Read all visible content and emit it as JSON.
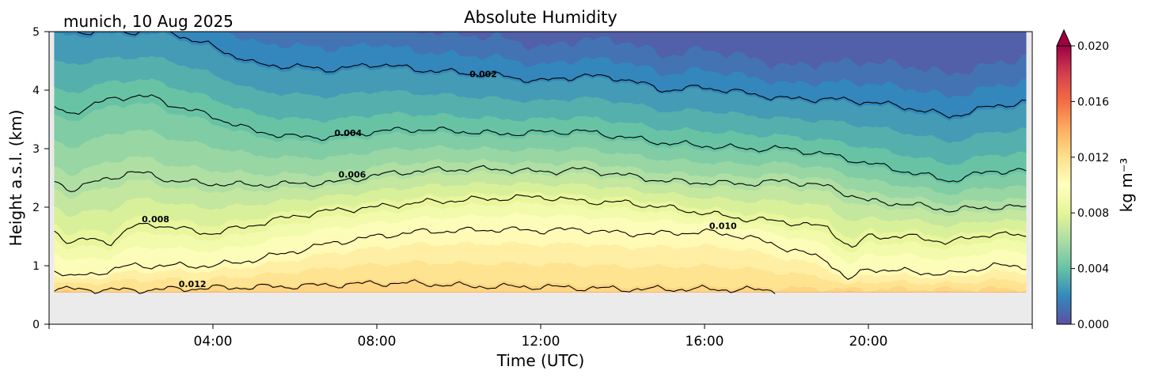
{
  "chart_data": {
    "type": "contourf",
    "title": "Absolute Humidity",
    "subtitle": "munich, 10 Aug 2025",
    "xlabel": "Time (UTC)",
    "ylabel": "Height a.s.l. (km)",
    "xlim": [
      0,
      24
    ],
    "ylim": [
      0,
      5
    ],
    "xticks": [
      {
        "value": 4,
        "label": "04:00"
      },
      {
        "value": 8,
        "label": "08:00"
      },
      {
        "value": 12,
        "label": "12:00"
      },
      {
        "value": 16,
        "label": "16:00"
      },
      {
        "value": 20,
        "label": "20:00"
      }
    ],
    "yticks": [
      {
        "value": 0,
        "label": "0"
      },
      {
        "value": 1,
        "label": "1"
      },
      {
        "value": 2,
        "label": "2"
      },
      {
        "value": 3,
        "label": "3"
      },
      {
        "value": 4,
        "label": "4"
      },
      {
        "value": 5,
        "label": "5"
      }
    ],
    "data_bottom_km": 0.55,
    "data_time_range": [
      0.13,
      23.85
    ],
    "colorbar": {
      "label": "kg m⁻³",
      "range": [
        0.0,
        0.02
      ],
      "extend": "max",
      "colormap": "Spectral_r",
      "ticks": [
        {
          "value": 0.0,
          "label": "0.000"
        },
        {
          "value": 0.004,
          "label": "0.004"
        },
        {
          "value": 0.008,
          "label": "0.008"
        },
        {
          "value": 0.012,
          "label": "0.012"
        },
        {
          "value": 0.016,
          "label": "0.016"
        },
        {
          "value": 0.02,
          "label": "0.020"
        }
      ]
    },
    "colors": {
      "no_data": "#ebebeb",
      "contour_line": "#000000"
    },
    "contours": [
      {
        "level": 0.002,
        "label": "0.002",
        "label_at": [
          10.6,
          4.28
        ],
        "points": [
          [
            3.0,
            5.0
          ],
          [
            3.5,
            4.85
          ],
          [
            4.0,
            4.75
          ],
          [
            4.5,
            4.6
          ],
          [
            5.0,
            4.45
          ],
          [
            6.0,
            4.4
          ],
          [
            7.0,
            4.35
          ],
          [
            8.0,
            4.45
          ],
          [
            9.0,
            4.35
          ],
          [
            10.0,
            4.3
          ],
          [
            11.0,
            4.25
          ],
          [
            12.0,
            4.15
          ],
          [
            13.0,
            4.25
          ],
          [
            14.0,
            4.2
          ],
          [
            15.0,
            4.0
          ],
          [
            16.0,
            4.05
          ],
          [
            17.0,
            3.95
          ],
          [
            18.0,
            3.85
          ],
          [
            19.0,
            3.85
          ],
          [
            20.0,
            3.8
          ],
          [
            21.0,
            3.7
          ],
          [
            22.0,
            3.55
          ],
          [
            23.0,
            3.72
          ],
          [
            23.85,
            3.8
          ]
        ]
      },
      {
        "level": 0.004,
        "label": "0.004",
        "label_at": [
          7.3,
          3.27
        ],
        "points": [
          [
            0.13,
            3.7
          ],
          [
            0.5,
            3.6
          ],
          [
            1.0,
            3.72
          ],
          [
            1.5,
            3.85
          ],
          [
            2.0,
            3.9
          ],
          [
            2.5,
            3.88
          ],
          [
            3.0,
            3.75
          ],
          [
            4.0,
            3.55
          ],
          [
            5.0,
            3.3
          ],
          [
            6.0,
            3.2
          ],
          [
            7.0,
            3.2
          ],
          [
            8.0,
            3.3
          ],
          [
            9.0,
            3.33
          ],
          [
            10.0,
            3.3
          ],
          [
            11.0,
            3.25
          ],
          [
            12.0,
            3.28
          ],
          [
            13.0,
            3.3
          ],
          [
            14.0,
            3.2
          ],
          [
            15.0,
            3.1
          ],
          [
            16.0,
            3.05
          ],
          [
            17.0,
            3.0
          ],
          [
            18.0,
            3.0
          ],
          [
            19.0,
            2.9
          ],
          [
            20.0,
            2.75
          ],
          [
            21.0,
            2.6
          ],
          [
            22.0,
            2.45
          ],
          [
            23.0,
            2.62
          ],
          [
            23.85,
            2.62
          ]
        ]
      },
      {
        "level": 0.006,
        "label": "0.006",
        "label_at": [
          7.4,
          2.56
        ],
        "points": [
          [
            0.13,
            2.45
          ],
          [
            0.5,
            2.3
          ],
          [
            1.0,
            2.4
          ],
          [
            1.5,
            2.5
          ],
          [
            2.0,
            2.6
          ],
          [
            2.5,
            2.55
          ],
          [
            3.0,
            2.45
          ],
          [
            4.0,
            2.4
          ],
          [
            5.0,
            2.38
          ],
          [
            6.0,
            2.4
          ],
          [
            7.0,
            2.42
          ],
          [
            8.0,
            2.55
          ],
          [
            9.0,
            2.62
          ],
          [
            10.0,
            2.65
          ],
          [
            11.0,
            2.65
          ],
          [
            12.0,
            2.6
          ],
          [
            13.0,
            2.65
          ],
          [
            14.0,
            2.55
          ],
          [
            15.0,
            2.45
          ],
          [
            16.0,
            2.42
          ],
          [
            17.0,
            2.4
          ],
          [
            18.0,
            2.45
          ],
          [
            19.0,
            2.35
          ],
          [
            20.0,
            2.1
          ],
          [
            21.0,
            2.05
          ],
          [
            22.0,
            1.95
          ],
          [
            23.0,
            2.0
          ],
          [
            23.85,
            2.0
          ]
        ]
      },
      {
        "level": 0.008,
        "label": "0.008",
        "label_at": [
          2.6,
          1.8
        ],
        "points": [
          [
            0.13,
            1.6
          ],
          [
            0.5,
            1.4
          ],
          [
            1.0,
            1.45
          ],
          [
            1.5,
            1.4
          ],
          [
            2.0,
            1.65
          ],
          [
            2.5,
            1.72
          ],
          [
            3.0,
            1.65
          ],
          [
            4.0,
            1.55
          ],
          [
            5.0,
            1.7
          ],
          [
            6.0,
            1.85
          ],
          [
            7.0,
            1.95
          ],
          [
            8.0,
            2.0
          ],
          [
            9.0,
            2.08
          ],
          [
            10.0,
            2.12
          ],
          [
            11.0,
            2.15
          ],
          [
            12.0,
            2.18
          ],
          [
            13.0,
            2.1
          ],
          [
            14.0,
            2.08
          ],
          [
            15.0,
            2.0
          ],
          [
            16.0,
            1.9
          ],
          [
            17.0,
            1.8
          ],
          [
            18.0,
            1.75
          ],
          [
            19.0,
            1.65
          ],
          [
            19.6,
            1.3
          ],
          [
            20.0,
            1.5
          ],
          [
            21.0,
            1.5
          ],
          [
            22.0,
            1.4
          ],
          [
            23.0,
            1.55
          ],
          [
            23.85,
            1.5
          ]
        ]
      },
      {
        "level": 0.01,
        "label": "0.010",
        "label_at": [
          16.45,
          1.68
        ],
        "points": [
          [
            0.13,
            0.95
          ],
          [
            0.5,
            0.8
          ],
          [
            1.0,
            0.85
          ],
          [
            2.0,
            1.0
          ],
          [
            3.0,
            1.0
          ],
          [
            4.0,
            1.0
          ],
          [
            5.0,
            1.1
          ],
          [
            6.0,
            1.25
          ],
          [
            7.0,
            1.4
          ],
          [
            8.0,
            1.5
          ],
          [
            9.0,
            1.58
          ],
          [
            10.0,
            1.6
          ],
          [
            11.0,
            1.62
          ],
          [
            12.0,
            1.6
          ],
          [
            13.0,
            1.62
          ],
          [
            14.0,
            1.55
          ],
          [
            15.0,
            1.55
          ],
          [
            16.0,
            1.58
          ],
          [
            17.0,
            1.5
          ],
          [
            18.0,
            1.3
          ],
          [
            19.0,
            1.1
          ],
          [
            19.5,
            0.75
          ],
          [
            20.0,
            0.95
          ],
          [
            21.0,
            0.9
          ],
          [
            22.0,
            0.85
          ],
          [
            23.0,
            1.0
          ],
          [
            23.85,
            0.98
          ]
        ]
      },
      {
        "level": 0.012,
        "label": "0.012",
        "label_at": [
          3.5,
          0.69
        ],
        "points": [
          [
            0.13,
            0.6
          ],
          [
            2.0,
            0.58
          ],
          [
            4.0,
            0.62
          ],
          [
            6.0,
            0.65
          ],
          [
            8.0,
            0.7
          ],
          [
            9.0,
            0.7
          ],
          [
            10.0,
            0.66
          ],
          [
            11.0,
            0.64
          ],
          [
            12.0,
            0.64
          ],
          [
            14.0,
            0.6
          ],
          [
            16.0,
            0.6
          ],
          [
            17.8,
            0.58
          ]
        ]
      }
    ]
  }
}
